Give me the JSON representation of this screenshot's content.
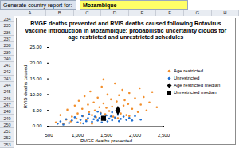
{
  "spreadsheet": {
    "prompt": "Generate country report for:",
    "country": "Mozambique",
    "columns": [
      "A",
      "B",
      "C",
      "D",
      "E",
      "F",
      "G",
      "H"
    ],
    "rows": [
      234,
      235,
      236,
      237,
      238,
      239,
      240,
      241,
      242,
      243,
      244,
      245,
      246,
      247,
      248,
      249,
      250,
      251,
      252,
      253
    ]
  },
  "chart_data": {
    "type": "scatter",
    "title": "RVGE deaths prevented and RVIS deaths caused following Rotavirus vaccine introduction in Mozambique: probabilistic uncertainty clouds for age restricted and unrestricted schedules",
    "x_label": "RVGE deaths prevented",
    "y_label": "RVIS deaths caused",
    "xlim": [
      500,
      2500
    ],
    "xticks": [
      {
        "value": 500,
        "label": "500"
      },
      {
        "value": 1000,
        "label": "1,000"
      },
      {
        "value": 1500,
        "label": "1,500"
      },
      {
        "value": 2000,
        "label": "2,000"
      },
      {
        "value": 2500,
        "label": "2,500"
      }
    ],
    "ylim": [
      0,
      25
    ],
    "yticks": [
      {
        "value": 0,
        "label": "0.00"
      },
      {
        "value": 5,
        "label": "5.00"
      },
      {
        "value": 10,
        "label": "10.00"
      },
      {
        "value": 15,
        "label": "15.00"
      },
      {
        "value": 20,
        "label": "20.00"
      },
      {
        "value": 25,
        "label": "25.00"
      }
    ],
    "grid": false,
    "legend": "right",
    "series": [
      {
        "name": "Age restricted",
        "color": "#f28e2b",
        "marker": "circle",
        "x": [
          620,
          700,
          750,
          800,
          820,
          880,
          900,
          950,
          980,
          1000,
          1020,
          1050,
          1080,
          1100,
          1120,
          1150,
          1180,
          1200,
          1220,
          1250,
          1280,
          1300,
          1320,
          1350,
          1380,
          1400,
          1420,
          1450,
          1480,
          1500,
          1520,
          1550,
          1580,
          1600,
          1620,
          1650,
          1680,
          1700,
          1720,
          1750,
          1780,
          1800,
          1820,
          1850,
          1880,
          1900,
          1950,
          2000,
          2050,
          2080,
          2100,
          2150,
          2200,
          2250,
          2300,
          2380,
          1450,
          1250,
          1700,
          1900
        ],
        "values": [
          1.2,
          3.5,
          0.8,
          2.1,
          5.2,
          1.5,
          3.0,
          6.5,
          2.4,
          4.0,
          8.0,
          1.0,
          5.5,
          3.2,
          9.5,
          2.0,
          6.8,
          4.5,
          11.0,
          3.5,
          7.5,
          5.0,
          2.8,
          9.0,
          6.0,
          4.2,
          12.5,
          7.2,
          3.8,
          5.8,
          10.0,
          4.8,
          8.5,
          6.2,
          3.0,
          13.5,
          7.8,
          5.2,
          9.8,
          4.0,
          11.5,
          6.5,
          8.2,
          3.5,
          7.0,
          10.5,
          5.5,
          8.8,
          4.5,
          12.0,
          6.8,
          9.2,
          5.0,
          7.5,
          10.8,
          6.0,
          14.8,
          0.8,
          2.5,
          3.2
        ]
      },
      {
        "name": "Unrestricted",
        "color": "#1f6fd1",
        "marker": "circle",
        "x": [
          650,
          700,
          750,
          800,
          850,
          900,
          950,
          1000,
          1050,
          1080,
          1100,
          1150,
          1180,
          1200,
          1250,
          1280,
          1300,
          1350,
          1380,
          1400,
          1420,
          1450,
          1480,
          1500,
          1520,
          1550,
          1580,
          1600,
          1650,
          1700,
          1720,
          1750,
          1800,
          1850,
          1900,
          1950,
          2000,
          2100,
          1350,
          1600
        ],
        "values": [
          0.8,
          1.5,
          0.5,
          2.2,
          1.0,
          1.8,
          2.8,
          1.2,
          2.0,
          3.2,
          0.9,
          1.6,
          2.5,
          3.8,
          1.4,
          2.2,
          3.0,
          1.8,
          2.6,
          4.0,
          1.2,
          2.9,
          2.0,
          3.4,
          1.5,
          2.4,
          3.1,
          1.9,
          2.7,
          3.6,
          1.6,
          2.3,
          3.0,
          2.0,
          2.6,
          1.8,
          3.2,
          2.1,
          4.6,
          4.4
        ]
      },
      {
        "name": "Age restricted median",
        "color": "#000000",
        "marker": "diamond",
        "x": [
          1700
        ],
        "values": [
          5.0
        ]
      },
      {
        "name": "Unrestricted median",
        "color": "#000000",
        "marker": "square",
        "x": [
          1450
        ],
        "values": [
          2.5
        ]
      }
    ]
  }
}
